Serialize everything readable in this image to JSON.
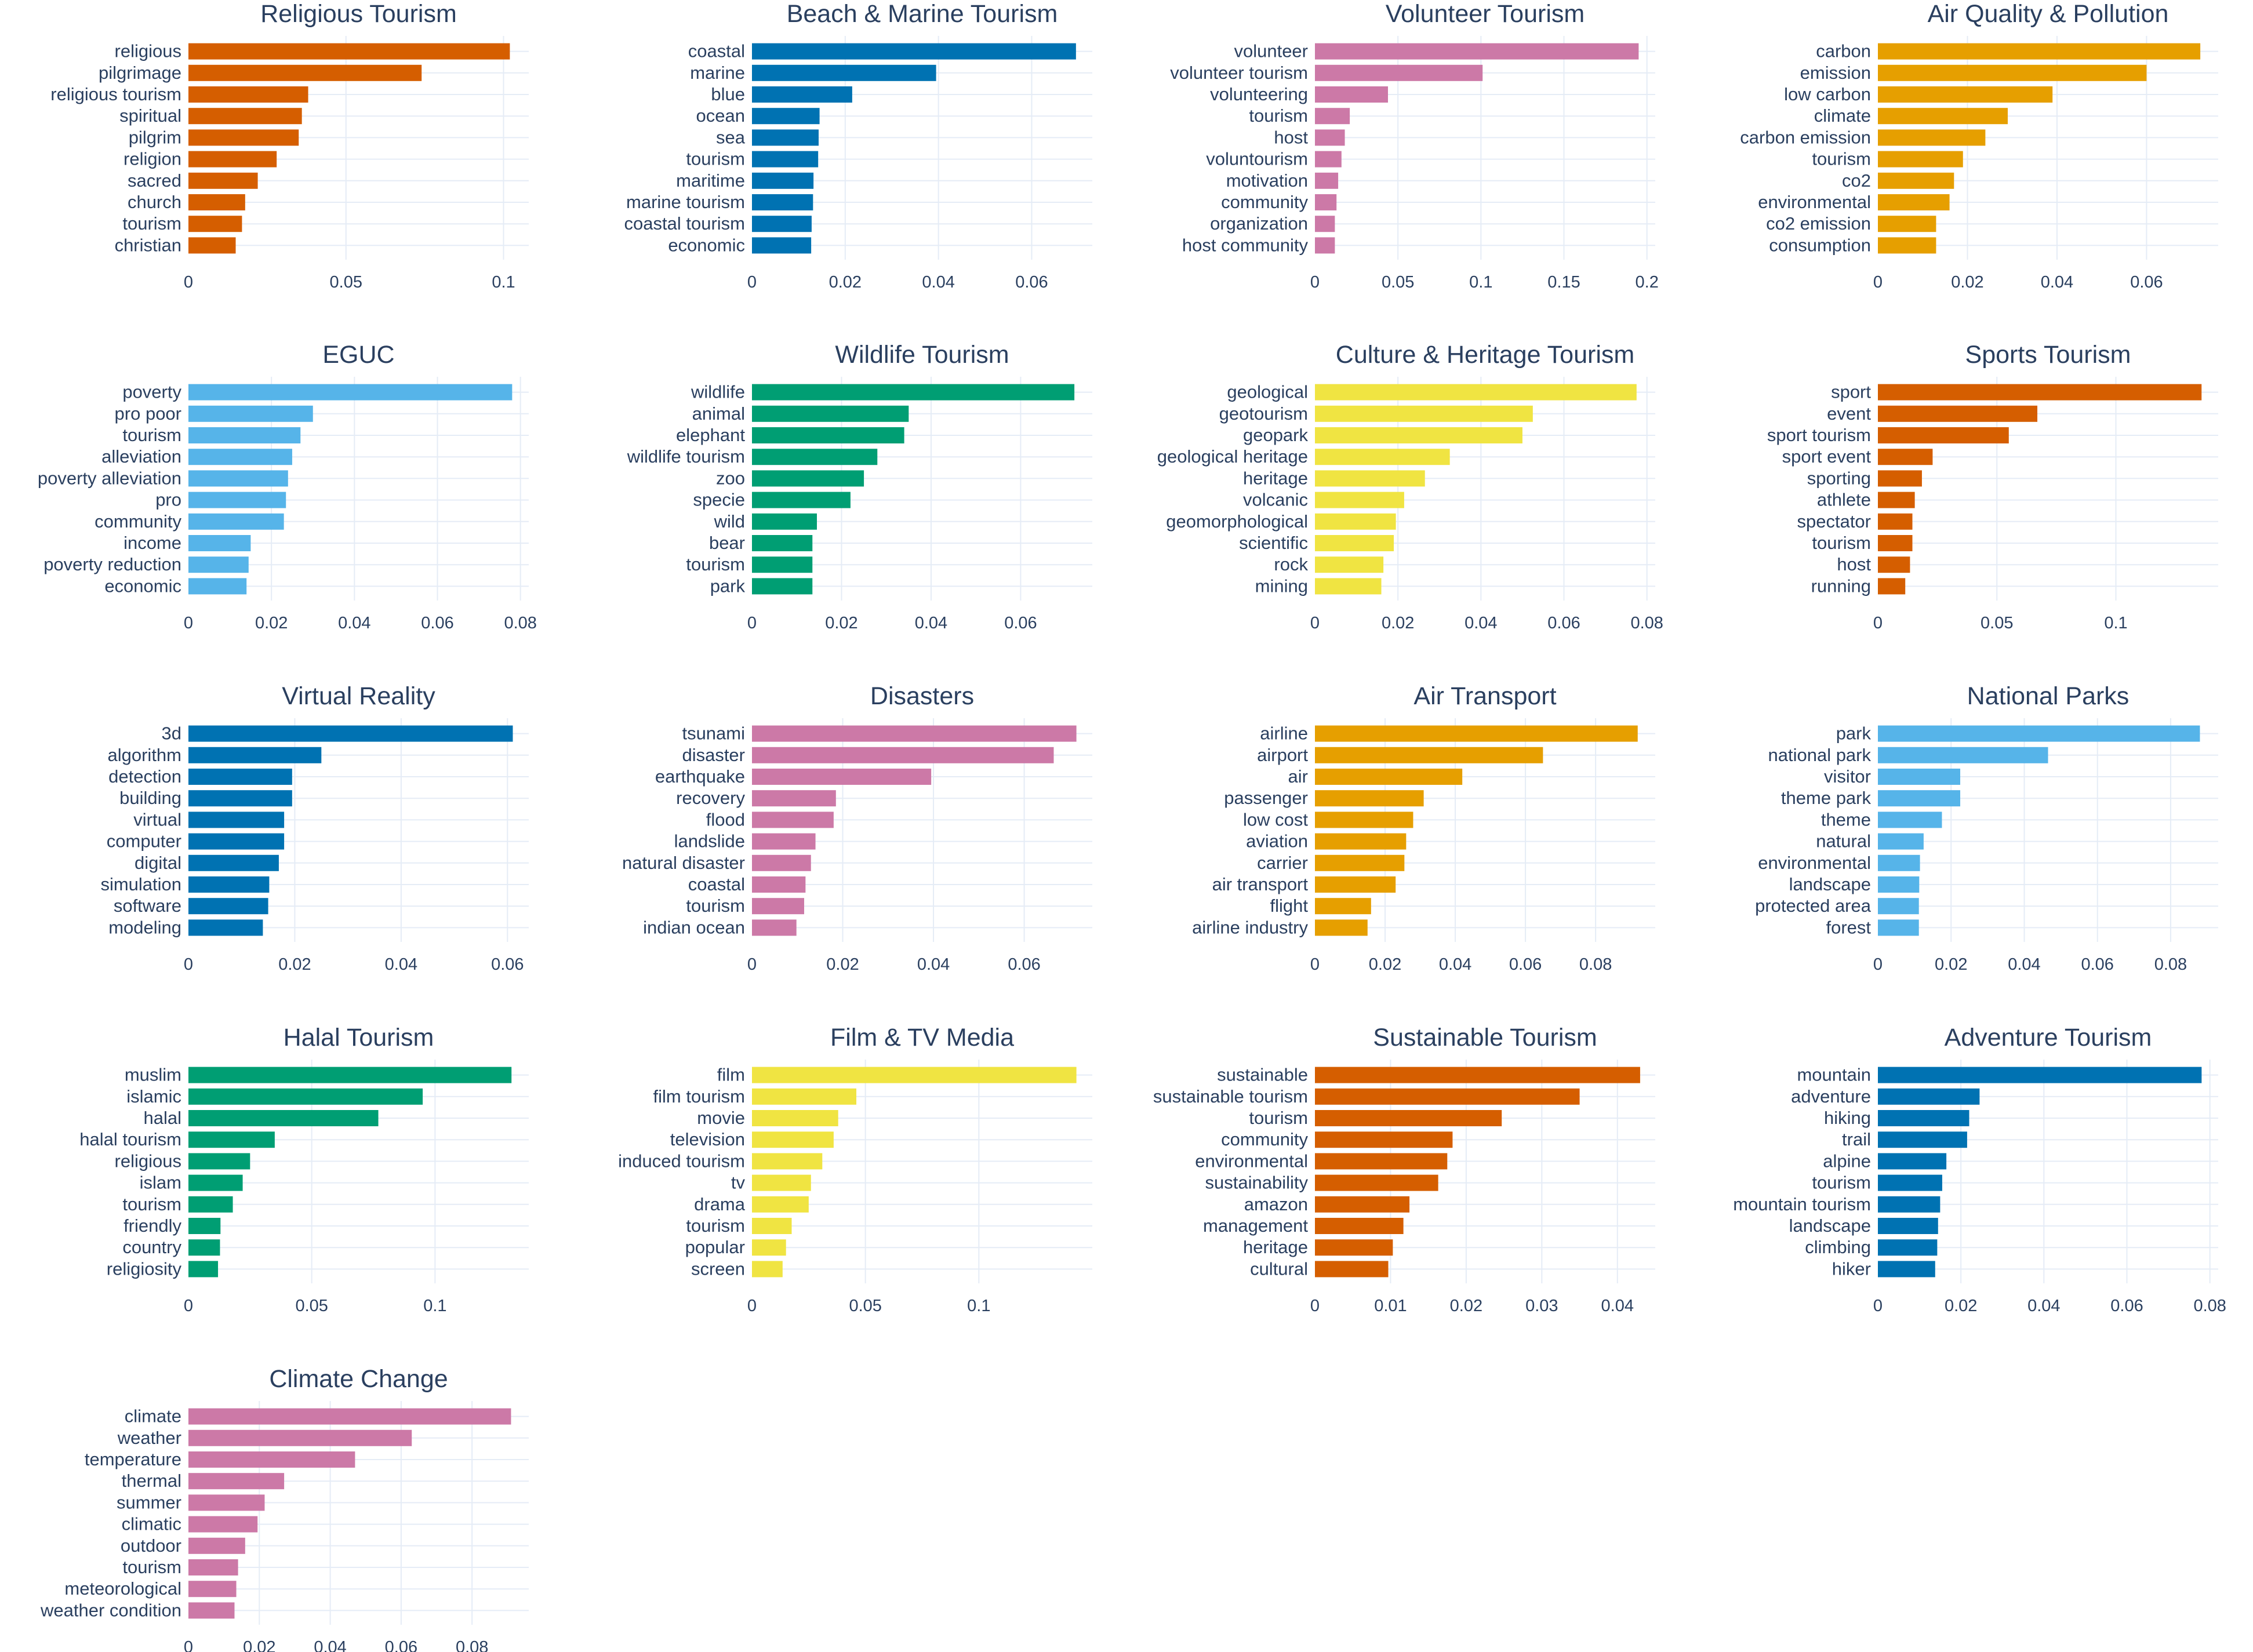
{
  "colors": {
    "orange": "#d55e00",
    "blue": "#0072b2",
    "pink": "#cc79a7",
    "amber": "#e69f00",
    "skyblue": "#56b4e9",
    "green": "#009e73",
    "yellow": "#f0e442",
    "gridline": "#e5ecf6",
    "text": "#2a3f5f"
  },
  "chart_data": [
    {
      "type": "bar",
      "orientation": "horizontal",
      "title": "Religious Tourism",
      "color": "orange",
      "categories": [
        "religious",
        "pilgrimage",
        "religious tourism",
        "spiritual",
        "pilgrim",
        "religion",
        "sacred",
        "church",
        "tourism",
        "christian"
      ],
      "values": [
        0.102,
        0.074,
        0.038,
        0.036,
        0.035,
        0.028,
        0.022,
        0.018,
        0.017,
        0.015
      ],
      "xlim": [
        0,
        0.108
      ],
      "ticks": [
        0,
        0.05,
        0.1
      ],
      "tick_labels": [
        "0",
        "0.05",
        "0.1"
      ]
    },
    {
      "type": "bar",
      "orientation": "horizontal",
      "title": "Beach & Marine Tourism",
      "color": "blue",
      "categories": [
        "coastal",
        "marine",
        "blue",
        "ocean",
        "sea",
        "tourism",
        "maritime",
        "marine tourism",
        "coastal tourism",
        "economic"
      ],
      "values": [
        0.0695,
        0.0395,
        0.0215,
        0.0145,
        0.0143,
        0.0142,
        0.0132,
        0.0131,
        0.0128,
        0.0127
      ],
      "xlim": [
        0,
        0.073
      ],
      "ticks": [
        0,
        0.02,
        0.04,
        0.06
      ],
      "tick_labels": [
        "0",
        "0.02",
        "0.04",
        "0.06"
      ]
    },
    {
      "type": "bar",
      "orientation": "horizontal",
      "title": "Volunteer Tourism",
      "color": "pink",
      "categories": [
        "volunteer",
        "volunteer tourism",
        "volunteering",
        "tourism",
        "host",
        "voluntourism",
        "motivation",
        "community",
        "organization",
        "host community"
      ],
      "values": [
        0.195,
        0.101,
        0.044,
        0.021,
        0.018,
        0.016,
        0.014,
        0.013,
        0.012,
        0.012
      ],
      "xlim": [
        0,
        0.205
      ],
      "ticks": [
        0,
        0.05,
        0.1,
        0.15,
        0.2
      ],
      "tick_labels": [
        "0",
        "0.05",
        "0.1",
        "0.15",
        "0.2"
      ]
    },
    {
      "type": "bar",
      "orientation": "horizontal",
      "title": "Air Quality & Pollution",
      "color": "amber",
      "categories": [
        "carbon",
        "emission",
        "low carbon",
        "climate",
        "carbon emission",
        "tourism",
        "co2",
        "environmental",
        "co2 emission",
        "consumption"
      ],
      "values": [
        0.072,
        0.06,
        0.039,
        0.029,
        0.024,
        0.019,
        0.017,
        0.016,
        0.013,
        0.013
      ],
      "xlim": [
        0,
        0.076
      ],
      "ticks": [
        0,
        0.02,
        0.04,
        0.06
      ],
      "tick_labels": [
        "0",
        "0.02",
        "0.04",
        "0.06"
      ]
    },
    {
      "type": "bar",
      "orientation": "horizontal",
      "title": "EGUC",
      "color": "skyblue",
      "categories": [
        "poverty",
        "pro poor",
        "tourism",
        "alleviation",
        "poverty alleviation",
        "pro",
        "community",
        "income",
        "poverty reduction",
        "economic"
      ],
      "values": [
        0.078,
        0.03,
        0.027,
        0.025,
        0.024,
        0.0235,
        0.023,
        0.015,
        0.0145,
        0.014
      ],
      "xlim": [
        0,
        0.082
      ],
      "ticks": [
        0,
        0.02,
        0.04,
        0.06,
        0.08
      ],
      "tick_labels": [
        "0",
        "0.02",
        "0.04",
        "0.06",
        "0.08"
      ]
    },
    {
      "type": "bar",
      "orientation": "horizontal",
      "title": "Wildlife Tourism",
      "color": "green",
      "categories": [
        "wildlife",
        "animal",
        "elephant",
        "wildlife tourism",
        "zoo",
        "specie",
        "wild",
        "bear",
        "tourism",
        "park"
      ],
      "values": [
        0.072,
        0.035,
        0.034,
        0.028,
        0.025,
        0.022,
        0.0145,
        0.0135,
        0.0135,
        0.0135
      ],
      "xlim": [
        0,
        0.076
      ],
      "ticks": [
        0,
        0.02,
        0.04,
        0.06
      ],
      "tick_labels": [
        "0",
        "0.02",
        "0.04",
        "0.06"
      ]
    },
    {
      "type": "bar",
      "orientation": "horizontal",
      "title": "Culture & Heritage Tourism",
      "color": "yellow",
      "categories": [
        "geological",
        "geotourism",
        "geopark",
        "geological heritage",
        "heritage",
        "volcanic",
        "geomorphological",
        "scientific",
        "rock",
        "mining"
      ],
      "values": [
        0.0775,
        0.0525,
        0.05,
        0.0325,
        0.0265,
        0.0215,
        0.0195,
        0.019,
        0.0165,
        0.016
      ],
      "xlim": [
        0,
        0.082
      ],
      "ticks": [
        0,
        0.02,
        0.04,
        0.06,
        0.08
      ],
      "tick_labels": [
        "0",
        "0.02",
        "0.04",
        "0.06",
        "0.08"
      ]
    },
    {
      "type": "bar",
      "orientation": "horizontal",
      "title": "Sports Tourism",
      "color": "orange",
      "categories": [
        "sport",
        "event",
        "sport tourism",
        "sport event",
        "sporting",
        "athlete",
        "spectator",
        "tourism",
        "host",
        "running"
      ],
      "values": [
        0.136,
        0.067,
        0.055,
        0.023,
        0.0185,
        0.0155,
        0.0145,
        0.0145,
        0.0135,
        0.0115
      ],
      "xlim": [
        0,
        0.143
      ],
      "ticks": [
        0,
        0.05,
        0.1
      ],
      "tick_labels": [
        "0",
        "0.05",
        "0.1"
      ]
    },
    {
      "type": "bar",
      "orientation": "horizontal",
      "title": "Virtual Reality",
      "color": "blue",
      "categories": [
        "3d",
        "algorithm",
        "detection",
        "building",
        "virtual",
        "computer",
        "digital",
        "simulation",
        "software",
        "modeling"
      ],
      "values": [
        0.061,
        0.025,
        0.0195,
        0.0195,
        0.018,
        0.018,
        0.017,
        0.0152,
        0.015,
        0.014
      ],
      "xlim": [
        0,
        0.064
      ],
      "ticks": [
        0,
        0.02,
        0.04,
        0.06
      ],
      "tick_labels": [
        "0",
        "0.02",
        "0.04",
        "0.06"
      ]
    },
    {
      "type": "bar",
      "orientation": "horizontal",
      "title": "Disasters",
      "color": "pink",
      "categories": [
        "tsunami",
        "disaster",
        "earthquake",
        "recovery",
        "flood",
        "landslide",
        "natural disaster",
        "coastal",
        "tourism",
        "indian ocean"
      ],
      "values": [
        0.0715,
        0.0665,
        0.0395,
        0.0185,
        0.018,
        0.014,
        0.013,
        0.0118,
        0.0115,
        0.0098
      ],
      "xlim": [
        0,
        0.075
      ],
      "ticks": [
        0,
        0.02,
        0.04,
        0.06
      ],
      "tick_labels": [
        "0",
        "0.02",
        "0.04",
        "0.06"
      ]
    },
    {
      "type": "bar",
      "orientation": "horizontal",
      "title": "Air Transport",
      "color": "amber",
      "categories": [
        "airline",
        "airport",
        "air",
        "passenger",
        "low cost",
        "aviation",
        "carrier",
        "air transport",
        "flight",
        "airline industry"
      ],
      "values": [
        0.092,
        0.065,
        0.042,
        0.031,
        0.028,
        0.026,
        0.0255,
        0.023,
        0.016,
        0.015
      ],
      "xlim": [
        0,
        0.097
      ],
      "ticks": [
        0,
        0.02,
        0.04,
        0.06,
        0.08
      ],
      "tick_labels": [
        "0",
        "0.02",
        "0.04",
        "0.06",
        "0.08"
      ]
    },
    {
      "type": "bar",
      "orientation": "horizontal",
      "title": "National Parks",
      "color": "skyblue",
      "categories": [
        "park",
        "national park",
        "visitor",
        "theme park",
        "theme",
        "natural",
        "environmental",
        "landscape",
        "protected area",
        "forest"
      ],
      "values": [
        0.088,
        0.0465,
        0.0225,
        0.0225,
        0.0175,
        0.0125,
        0.0115,
        0.0113,
        0.0112,
        0.0112
      ],
      "xlim": [
        0,
        0.093
      ],
      "ticks": [
        0,
        0.02,
        0.04,
        0.06,
        0.08
      ],
      "tick_labels": [
        "0",
        "0.02",
        "0.04",
        "0.06",
        "0.08"
      ]
    },
    {
      "type": "bar",
      "orientation": "horizontal",
      "title": "Halal Tourism",
      "color": "green",
      "categories": [
        "muslim",
        "islamic",
        "halal",
        "halal tourism",
        "religious",
        "islam",
        "tourism",
        "friendly",
        "country",
        "religiosity"
      ],
      "values": [
        0.131,
        0.095,
        0.077,
        0.035,
        0.025,
        0.022,
        0.018,
        0.013,
        0.0128,
        0.012
      ],
      "xlim": [
        0,
        0.138
      ],
      "ticks": [
        0,
        0.05,
        0.1
      ],
      "tick_labels": [
        "0",
        "0.05",
        "0.1"
      ]
    },
    {
      "type": "bar",
      "orientation": "horizontal",
      "title": "Film & TV Media",
      "color": "yellow",
      "categories": [
        "film",
        "film tourism",
        "movie",
        "television",
        "induced tourism",
        "tv",
        "drama",
        "tourism",
        "popular",
        "screen"
      ],
      "values": [
        0.143,
        0.046,
        0.038,
        0.036,
        0.031,
        0.026,
        0.025,
        0.0175,
        0.015,
        0.0135
      ],
      "xlim": [
        0,
        0.15
      ],
      "ticks": [
        0,
        0.05,
        0.1
      ],
      "tick_labels": [
        "0",
        "0.05",
        "0.1"
      ]
    },
    {
      "type": "bar",
      "orientation": "horizontal",
      "title": "Sustainable Tourism",
      "color": "orange",
      "categories": [
        "sustainable",
        "sustainable tourism",
        "tourism",
        "community",
        "environmental",
        "sustainability",
        "amazon",
        "management",
        "heritage",
        "cultural"
      ],
      "values": [
        0.043,
        0.035,
        0.0247,
        0.0182,
        0.0175,
        0.0163,
        0.0125,
        0.0117,
        0.0103,
        0.0097
      ],
      "xlim": [
        0,
        0.045
      ],
      "ticks": [
        0,
        0.01,
        0.02,
        0.03,
        0.04
      ],
      "tick_labels": [
        "0",
        "0.01",
        "0.02",
        "0.03",
        "0.04"
      ]
    },
    {
      "type": "bar",
      "orientation": "horizontal",
      "title": "Adventure Tourism",
      "color": "blue",
      "categories": [
        "mountain",
        "adventure",
        "hiking",
        "trail",
        "alpine",
        "tourism",
        "mountain tourism",
        "landscape",
        "climbing",
        "hiker"
      ],
      "values": [
        0.078,
        0.0245,
        0.022,
        0.0215,
        0.0165,
        0.0155,
        0.015,
        0.0145,
        0.0143,
        0.0138
      ],
      "xlim": [
        0,
        0.082
      ],
      "ticks": [
        0,
        0.02,
        0.04,
        0.06,
        0.08
      ],
      "tick_labels": [
        "0",
        "0.02",
        "0.04",
        "0.06",
        "0.08"
      ]
    },
    {
      "type": "bar",
      "orientation": "horizontal",
      "title": "Climate Change",
      "color": "pink",
      "categories": [
        "climate",
        "weather",
        "temperature",
        "thermal",
        "summer",
        "climatic",
        "outdoor",
        "tourism",
        "meteorological",
        "weather condition"
      ],
      "values": [
        0.091,
        0.063,
        0.047,
        0.027,
        0.0215,
        0.0195,
        0.016,
        0.014,
        0.0135,
        0.013
      ],
      "xlim": [
        0,
        0.096
      ],
      "ticks": [
        0,
        0.02,
        0.04,
        0.06,
        0.08
      ],
      "tick_labels": [
        "0",
        "0.02",
        "0.04",
        "0.06",
        "0.08"
      ]
    }
  ]
}
